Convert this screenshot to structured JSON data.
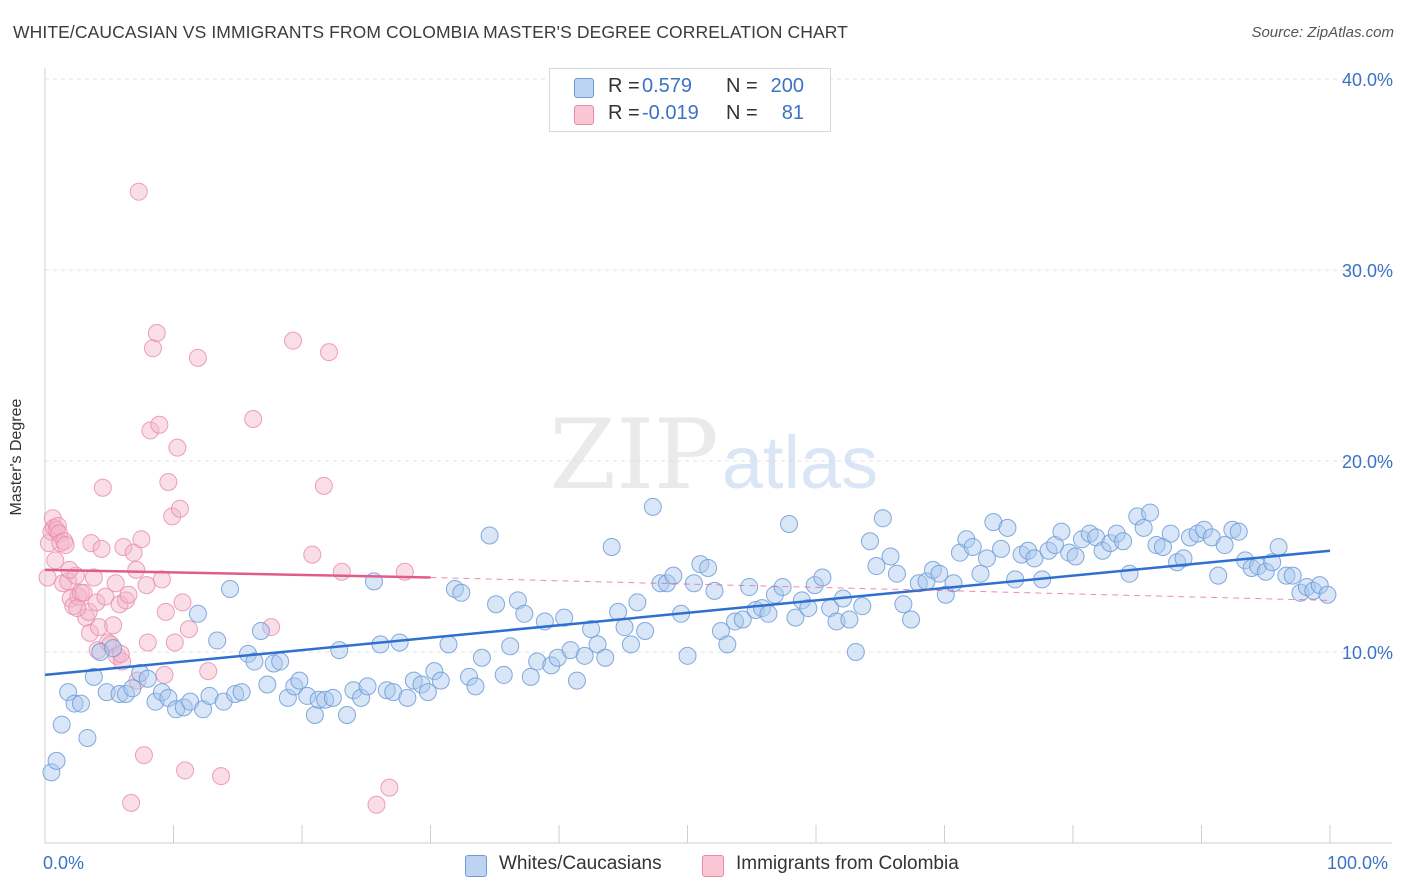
{
  "title": "WHITE/CAUCASIAN VS IMMIGRANTS FROM COLOMBIA MASTER'S DEGREE CORRELATION CHART",
  "source": "Source: ZipAtlas.com",
  "watermark": {
    "zip": "ZIP",
    "atlas": "atlas"
  },
  "legend": {
    "series1": {
      "r_label": "R =",
      "r_value": "0.579",
      "n_label": "N =",
      "n_value": "200"
    },
    "series2": {
      "r_label": "R =",
      "r_value": "-0.019",
      "n_label": "N =",
      "n_value": "81"
    }
  },
  "colors": {
    "blue_fill": "#a9c7ee",
    "blue_stroke": "#6f9bd8",
    "blue_line": "#2f6fcf",
    "pink_fill": "#f5b6c9",
    "pink_stroke": "#e98aa8",
    "pink_line": "#e05d8a",
    "axis_text": "#3a73c4",
    "grid": "#e3e3e3"
  },
  "chart_data": {
    "type": "scatter",
    "title": "WHITE/CAUCASIAN VS IMMIGRANTS FROM COLOMBIA MASTER'S DEGREE CORRELATION CHART",
    "xlabel": "",
    "ylabel": "Master's Degree",
    "xlim": [
      0,
      100
    ],
    "ylim": [
      0,
      41
    ],
    "x_tick_labels": [
      "0.0%",
      "100.0%"
    ],
    "y_ticks": [
      10,
      20,
      30,
      40
    ],
    "y_tick_labels": [
      "10.0%",
      "20.0%",
      "30.0%",
      "40.0%"
    ],
    "grid": true,
    "legend_position": "top-center",
    "series": [
      {
        "name": "Whites/Caucasians",
        "color": "#6f9bd8",
        "trend": {
          "x": [
            0,
            100
          ],
          "y": [
            8.8,
            15.3
          ]
        },
        "points": [
          [
            0.5,
            3.7
          ],
          [
            0.9,
            4.3
          ],
          [
            1.3,
            6.2
          ],
          [
            1.8,
            7.9
          ],
          [
            2.3,
            7.3
          ],
          [
            2.8,
            7.3
          ],
          [
            3.3,
            5.5
          ],
          [
            3.8,
            8.7
          ],
          [
            4.3,
            10.0
          ],
          [
            4.8,
            7.9
          ],
          [
            5.3,
            10.2
          ],
          [
            5.8,
            7.8
          ],
          [
            6.3,
            7.8
          ],
          [
            6.8,
            8.1
          ],
          [
            7.4,
            8.9
          ],
          [
            8.0,
            8.6
          ],
          [
            8.6,
            7.4
          ],
          [
            9.1,
            7.9
          ],
          [
            9.6,
            7.6
          ],
          [
            10.2,
            7.0
          ],
          [
            10.8,
            7.1
          ],
          [
            11.3,
            7.4
          ],
          [
            11.9,
            12.0
          ],
          [
            12.3,
            7.0
          ],
          [
            12.8,
            7.7
          ],
          [
            13.4,
            10.6
          ],
          [
            13.9,
            7.4
          ],
          [
            14.4,
            13.3
          ],
          [
            14.8,
            7.8
          ],
          [
            15.3,
            7.9
          ],
          [
            15.8,
            9.9
          ],
          [
            16.3,
            9.5
          ],
          [
            16.8,
            11.1
          ],
          [
            17.3,
            8.3
          ],
          [
            17.8,
            9.4
          ],
          [
            18.3,
            9.5
          ],
          [
            18.9,
            7.6
          ],
          [
            19.4,
            8.2
          ],
          [
            19.8,
            8.5
          ],
          [
            20.4,
            7.7
          ],
          [
            21.0,
            6.7
          ],
          [
            21.3,
            7.5
          ],
          [
            21.8,
            7.5
          ],
          [
            22.4,
            7.6
          ],
          [
            22.9,
            10.1
          ],
          [
            23.5,
            6.7
          ],
          [
            24.0,
            8.0
          ],
          [
            24.6,
            7.6
          ],
          [
            25.1,
            8.2
          ],
          [
            25.6,
            13.7
          ],
          [
            26.1,
            10.4
          ],
          [
            26.6,
            8.0
          ],
          [
            27.1,
            7.9
          ],
          [
            27.6,
            10.5
          ],
          [
            28.2,
            7.6
          ],
          [
            28.7,
            8.5
          ],
          [
            29.3,
            8.3
          ],
          [
            29.8,
            7.9
          ],
          [
            30.3,
            9.0
          ],
          [
            30.8,
            8.5
          ],
          [
            31.4,
            10.4
          ],
          [
            31.9,
            13.3
          ],
          [
            32.4,
            13.1
          ],
          [
            33.0,
            8.7
          ],
          [
            33.5,
            8.2
          ],
          [
            34.0,
            9.7
          ],
          [
            34.6,
            16.1
          ],
          [
            35.1,
            12.5
          ],
          [
            35.7,
            8.8
          ],
          [
            36.2,
            10.3
          ],
          [
            36.8,
            12.7
          ],
          [
            37.3,
            12.0
          ],
          [
            37.8,
            8.7
          ],
          [
            38.3,
            9.5
          ],
          [
            38.9,
            11.6
          ],
          [
            39.4,
            9.3
          ],
          [
            39.9,
            9.7
          ],
          [
            40.4,
            11.8
          ],
          [
            40.9,
            10.1
          ],
          [
            41.4,
            8.5
          ],
          [
            42.0,
            9.8
          ],
          [
            42.5,
            11.2
          ],
          [
            43.0,
            10.4
          ],
          [
            43.6,
            9.7
          ],
          [
            44.1,
            15.5
          ],
          [
            44.6,
            12.1
          ],
          [
            45.1,
            11.3
          ],
          [
            45.6,
            10.4
          ],
          [
            46.1,
            12.6
          ],
          [
            46.7,
            11.1
          ],
          [
            47.3,
            17.6
          ],
          [
            47.9,
            13.6
          ],
          [
            48.4,
            13.6
          ],
          [
            48.9,
            14.0
          ],
          [
            49.5,
            12.0
          ],
          [
            50.0,
            9.8
          ],
          [
            50.5,
            13.6
          ],
          [
            51.0,
            14.6
          ],
          [
            51.6,
            14.4
          ],
          [
            52.1,
            13.2
          ],
          [
            52.6,
            11.1
          ],
          [
            53.1,
            10.4
          ],
          [
            53.7,
            11.6
          ],
          [
            54.3,
            11.7
          ],
          [
            54.8,
            13.4
          ],
          [
            55.3,
            12.2
          ],
          [
            55.8,
            12.3
          ],
          [
            56.3,
            12.0
          ],
          [
            56.8,
            13.0
          ],
          [
            57.4,
            13.4
          ],
          [
            57.9,
            16.7
          ],
          [
            58.4,
            11.8
          ],
          [
            58.9,
            12.7
          ],
          [
            59.4,
            12.3
          ],
          [
            59.9,
            13.5
          ],
          [
            60.5,
            13.9
          ],
          [
            61.1,
            12.3
          ],
          [
            61.6,
            11.6
          ],
          [
            62.1,
            12.8
          ],
          [
            62.6,
            11.7
          ],
          [
            63.1,
            10.0
          ],
          [
            63.6,
            12.4
          ],
          [
            64.2,
            15.8
          ],
          [
            64.7,
            14.5
          ],
          [
            65.2,
            17.0
          ],
          [
            65.8,
            15.0
          ],
          [
            66.3,
            14.1
          ],
          [
            66.8,
            12.5
          ],
          [
            67.4,
            11.7
          ],
          [
            68.0,
            13.6
          ],
          [
            68.6,
            13.7
          ],
          [
            69.1,
            14.3
          ],
          [
            69.6,
            14.1
          ],
          [
            70.1,
            13.0
          ],
          [
            70.7,
            13.6
          ],
          [
            71.2,
            15.2
          ],
          [
            71.7,
            15.9
          ],
          [
            72.2,
            15.5
          ],
          [
            72.8,
            14.1
          ],
          [
            73.3,
            14.9
          ],
          [
            73.8,
            16.8
          ],
          [
            74.4,
            15.4
          ],
          [
            74.9,
            16.5
          ],
          [
            75.5,
            13.8
          ],
          [
            76.0,
            15.1
          ],
          [
            76.5,
            15.3
          ],
          [
            77.0,
            14.9
          ],
          [
            77.6,
            13.8
          ],
          [
            78.1,
            15.3
          ],
          [
            78.6,
            15.6
          ],
          [
            79.1,
            16.3
          ],
          [
            79.7,
            15.2
          ],
          [
            80.2,
            15.0
          ],
          [
            80.7,
            15.9
          ],
          [
            81.3,
            16.2
          ],
          [
            81.8,
            16.0
          ],
          [
            82.3,
            15.3
          ],
          [
            82.9,
            15.7
          ],
          [
            83.4,
            16.2
          ],
          [
            83.9,
            15.8
          ],
          [
            84.4,
            14.1
          ],
          [
            85.0,
            17.1
          ],
          [
            85.5,
            16.5
          ],
          [
            86.0,
            17.3
          ],
          [
            86.5,
            15.6
          ],
          [
            87.0,
            15.5
          ],
          [
            87.6,
            16.2
          ],
          [
            88.1,
            14.7
          ],
          [
            88.6,
            14.9
          ],
          [
            89.1,
            16.0
          ],
          [
            89.7,
            16.2
          ],
          [
            90.2,
            16.4
          ],
          [
            90.8,
            16.0
          ],
          [
            91.3,
            14.0
          ],
          [
            91.8,
            15.6
          ],
          [
            92.4,
            16.4
          ],
          [
            92.9,
            16.3
          ],
          [
            93.4,
            14.8
          ],
          [
            93.9,
            14.4
          ],
          [
            94.4,
            14.5
          ],
          [
            95.0,
            14.2
          ],
          [
            95.5,
            14.7
          ],
          [
            96.0,
            15.5
          ],
          [
            96.6,
            14.0
          ],
          [
            97.1,
            14.0
          ],
          [
            97.7,
            13.1
          ],
          [
            98.2,
            13.4
          ],
          [
            98.7,
            13.2
          ],
          [
            99.2,
            13.5
          ],
          [
            99.8,
            13.0
          ]
        ]
      },
      {
        "name": "Immigrants from Colombia",
        "color": "#e98aa8",
        "trend": {
          "x": [
            0,
            30
          ],
          "y": [
            14.3,
            13.9
          ]
        },
        "trend_dashed": {
          "x": [
            30,
            100
          ],
          "y": [
            13.9,
            12.7
          ]
        },
        "points": [
          [
            0.2,
            13.9
          ],
          [
            0.3,
            15.7
          ],
          [
            0.5,
            16.3
          ],
          [
            0.6,
            17.0
          ],
          [
            0.7,
            16.5
          ],
          [
            0.8,
            14.8
          ],
          [
            0.9,
            16.4
          ],
          [
            1.0,
            16.6
          ],
          [
            1.1,
            16.2
          ],
          [
            1.2,
            15.7
          ],
          [
            1.4,
            13.6
          ],
          [
            1.5,
            15.8
          ],
          [
            1.6,
            15.6
          ],
          [
            1.8,
            13.7
          ],
          [
            2.0,
            12.8
          ],
          [
            2.2,
            12.4
          ],
          [
            2.4,
            14.0
          ],
          [
            2.6,
            12.9
          ],
          [
            2.8,
            13.1
          ],
          [
            3.0,
            13.1
          ],
          [
            3.2,
            11.8
          ],
          [
            3.4,
            12.1
          ],
          [
            3.5,
            11.0
          ],
          [
            3.6,
            15.7
          ],
          [
            3.8,
            13.9
          ],
          [
            4.0,
            12.6
          ],
          [
            4.2,
            11.3
          ],
          [
            4.4,
            15.4
          ],
          [
            4.5,
            18.6
          ],
          [
            4.7,
            12.9
          ],
          [
            4.9,
            10.5
          ],
          [
            5.1,
            10.4
          ],
          [
            5.3,
            11.4
          ],
          [
            5.5,
            13.6
          ],
          [
            5.6,
            9.8
          ],
          [
            5.8,
            12.5
          ],
          [
            6.0,
            9.5
          ],
          [
            6.1,
            15.5
          ],
          [
            6.3,
            12.7
          ],
          [
            6.5,
            13.0
          ],
          [
            6.7,
            2.1
          ],
          [
            6.9,
            15.2
          ],
          [
            7.1,
            14.3
          ],
          [
            7.3,
            34.1
          ],
          [
            7.5,
            15.9
          ],
          [
            7.7,
            4.6
          ],
          [
            7.9,
            13.5
          ],
          [
            8.0,
            10.5
          ],
          [
            8.2,
            21.6
          ],
          [
            8.4,
            25.9
          ],
          [
            8.7,
            26.7
          ],
          [
            8.9,
            21.9
          ],
          [
            9.1,
            13.8
          ],
          [
            9.4,
            12.1
          ],
          [
            9.6,
            18.9
          ],
          [
            9.9,
            17.1
          ],
          [
            10.1,
            10.5
          ],
          [
            10.3,
            20.7
          ],
          [
            10.5,
            17.5
          ],
          [
            10.7,
            12.6
          ],
          [
            10.9,
            3.8
          ],
          [
            11.2,
            11.2
          ],
          [
            11.9,
            25.4
          ],
          [
            12.7,
            9.0
          ],
          [
            13.7,
            3.5
          ],
          [
            16.2,
            22.2
          ],
          [
            17.6,
            11.3
          ],
          [
            19.3,
            26.3
          ],
          [
            20.8,
            15.1
          ],
          [
            21.7,
            18.7
          ],
          [
            22.1,
            25.7
          ],
          [
            23.1,
            14.2
          ],
          [
            25.8,
            2.0
          ],
          [
            26.8,
            2.9
          ],
          [
            28.0,
            14.2
          ],
          [
            1.9,
            14.3
          ],
          [
            2.5,
            12.3
          ],
          [
            4.1,
            10.1
          ],
          [
            5.9,
            9.9
          ],
          [
            7.2,
            8.5
          ],
          [
            9.3,
            8.8
          ]
        ]
      }
    ]
  }
}
